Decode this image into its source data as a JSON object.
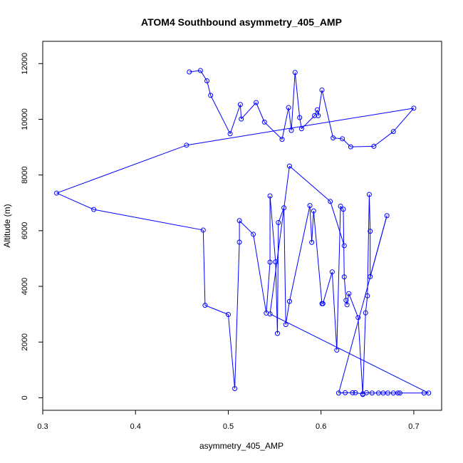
{
  "chart_data": {
    "type": "line",
    "title": "ATOM4 Southbound asymmetry_405_AMP",
    "xlabel": "asymmetry_405_AMP",
    "ylabel": "Altitude (m)",
    "xlim": [
      0.3,
      0.73
    ],
    "ylim": [
      -450,
      12800
    ],
    "xticks": [
      0.3,
      0.4,
      0.5,
      0.6,
      0.7
    ],
    "yticks": [
      0,
      2000,
      4000,
      6000,
      8000,
      10000,
      12000
    ],
    "xtick_labels": [
      "0.3",
      "0.4",
      "0.5",
      "0.6",
      "0.7"
    ],
    "ytick_labels": [
      "0",
      "2000",
      "4000",
      "6000",
      "8000",
      "10000",
      "12000"
    ],
    "grid": false,
    "marker": "open-circle",
    "color": "#0000ff",
    "series": [
      {
        "x": [
          0.458,
          0.47,
          0.477,
          0.481,
          0.502,
          0.513,
          0.514,
          0.53,
          0.539,
          0.558,
          0.565,
          0.568,
          0.572,
          0.577,
          0.579,
          0.593,
          0.596,
          0.597,
          0.601,
          0.613,
          0.623,
          0.632,
          0.657,
          0.678,
          0.7,
          0.455,
          0.315,
          0.355,
          0.473,
          0.475,
          0.5,
          0.507,
          0.512,
          0.512,
          0.527,
          0.541,
          0.545,
          0.545,
          0.551,
          0.553,
          0.554,
          0.56,
          0.562,
          0.566,
          0.588,
          0.59,
          0.592,
          0.601,
          0.602,
          0.612,
          0.617,
          0.621,
          0.624,
          0.625,
          0.627,
          0.628,
          0.63,
          0.64,
          0.645,
          0.648,
          0.65,
          0.652,
          0.653,
          0.653,
          0.671,
          0.619,
          0.626,
          0.634,
          0.637,
          0.645,
          0.649,
          0.655,
          0.662,
          0.667,
          0.672,
          0.678,
          0.683,
          0.685,
          0.711,
          0.716,
          0.545,
          0.566,
          0.61,
          0.625
        ],
        "y": [
          11700,
          11750,
          11380,
          10860,
          9480,
          10530,
          10010,
          10600,
          9900,
          9280,
          10420,
          9600,
          11680,
          10060,
          9660,
          10130,
          10340,
          10130,
          11050,
          9330,
          9300,
          9010,
          9030,
          9560,
          10400,
          9070,
          7350,
          6760,
          6020,
          3320,
          2990,
          330,
          5590,
          6360,
          5870,
          3040,
          4870,
          7250,
          4880,
          2310,
          6290,
          6820,
          2630,
          3460,
          6900,
          5580,
          6710,
          3380,
          3380,
          4520,
          1710,
          6880,
          6770,
          4340,
          3500,
          3340,
          3740,
          2880,
          120,
          3050,
          3660,
          7300,
          5980,
          4350,
          6540,
          170,
          180,
          180,
          180,
          140,
          180,
          170,
          170,
          170,
          170,
          170,
          170,
          170,
          170,
          170,
          3010,
          8320,
          7050,
          5460
        ]
      }
    ]
  }
}
